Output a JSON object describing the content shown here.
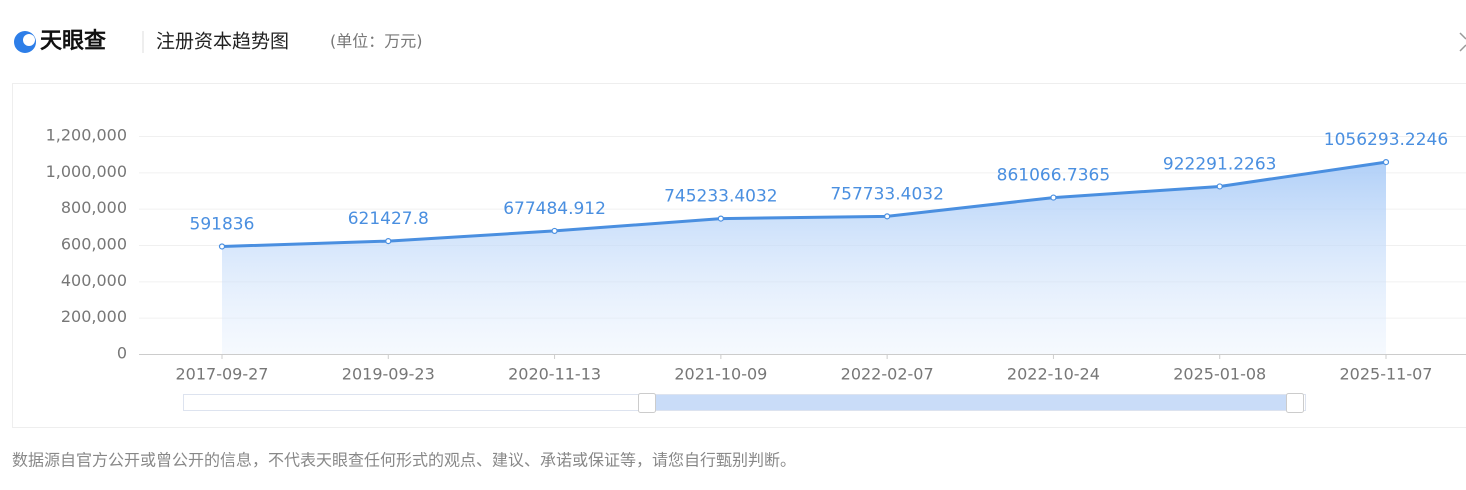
{
  "header": {
    "logo": "天眼查",
    "title": "注册资本趋势图",
    "unit": "(单位：万元)"
  },
  "chart_data": {
    "type": "line",
    "categories": [
      "2017-09-27",
      "2019-09-23",
      "2020-11-13",
      "2021-10-09",
      "2022-02-07",
      "2022-10-24",
      "2025-01-08",
      "2025-11-07"
    ],
    "values": [
      591836,
      621427.8,
      677484.912,
      745233.4032,
      757733.4032,
      861066.7365,
      922291.2263,
      1056293.2246
    ],
    "color": "#4a8fe0",
    "ylim": [
      0,
      1200000
    ],
    "yticks": [
      0,
      {
        "value": 200000,
        "label": "200,000"
      },
      {
        "value": 400000,
        "label": "400,000"
      },
      {
        "value": 600000,
        "label": "600,000"
      },
      {
        "value": 800000,
        "label": "800,000"
      },
      {
        "value": 1000000,
        "label": "1,000,000"
      },
      {
        "value": 1200000,
        "label": "1,200,000"
      }
    ],
    "grid": true,
    "area": true
  },
  "footer": "数据源自官方公开或曾公开的信息，不代表天眼查任何形式的观点、建议、承诺或保证等，请您自行甄别判断。"
}
